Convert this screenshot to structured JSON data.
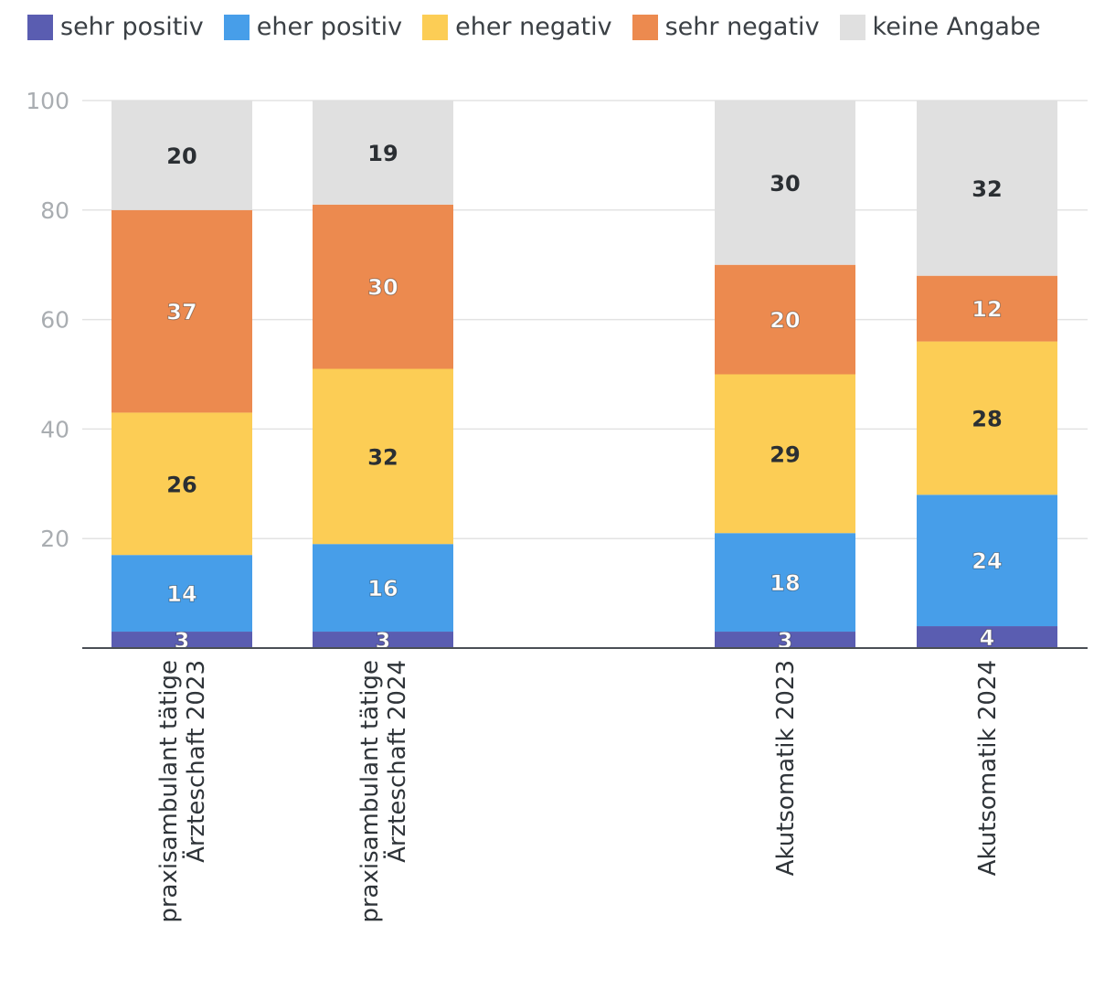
{
  "chart_data": {
    "type": "bar",
    "stacked": true,
    "title": "",
    "xlabel": "",
    "ylabel": "",
    "ylim": [
      0,
      100
    ],
    "yticks": [
      20,
      40,
      60,
      80,
      100
    ],
    "grid": true,
    "legend_position": "top",
    "categories": [
      [
        "praxisambulant tätige",
        "Ärzteschaft 2023"
      ],
      [
        "praxisambulant tätige",
        "Ärzteschaft 2024"
      ],
      [
        "Akutsomatik 2023"
      ],
      [
        "Akutsomatik 2024"
      ]
    ],
    "series": [
      {
        "name": "sehr positiv",
        "color": "#5a5db1",
        "label_color": "#ffffff",
        "values": [
          3,
          3,
          3,
          4
        ]
      },
      {
        "name": "eher positiv",
        "color": "#479ee9",
        "label_color": "#ffffff",
        "values": [
          14,
          16,
          18,
          24
        ]
      },
      {
        "name": "eher negativ",
        "color": "#fccd55",
        "label_color": "#2b2f33",
        "values": [
          26,
          32,
          29,
          28
        ]
      },
      {
        "name": "sehr negativ",
        "color": "#ec8a4f",
        "label_color": "#ffffff",
        "values": [
          37,
          30,
          20,
          12
        ]
      },
      {
        "name": "keine Angabe",
        "color": "#e0e0e0",
        "label_color": "#2b2f33",
        "values": [
          20,
          19,
          30,
          32
        ]
      }
    ]
  }
}
